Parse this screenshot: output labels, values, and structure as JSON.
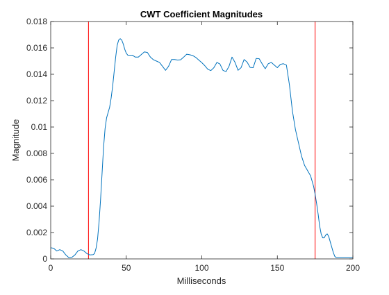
{
  "chart_data": {
    "type": "line",
    "title": "CWT Coefficient Magnitudes",
    "xlabel": "Milliseconds",
    "ylabel": "Magnitude",
    "xlim": [
      0,
      200
    ],
    "ylim": [
      0,
      0.018
    ],
    "xticks": [
      0,
      50,
      100,
      150,
      200
    ],
    "xtick_labels": [
      "0",
      "50",
      "100",
      "150",
      "200"
    ],
    "yticks": [
      0,
      0.002,
      0.004,
      0.006,
      0.008,
      0.01,
      0.012,
      0.014,
      0.016,
      0.018
    ],
    "ytick_labels": [
      "0",
      "0.002",
      "0.004",
      "0.006",
      "0.008",
      "0.01",
      "0.012",
      "0.014",
      "0.016",
      "0.018"
    ],
    "grid": false,
    "box": true,
    "series": [
      {
        "color": "#0072BD",
        "x": [
          0,
          2,
          4,
          6,
          8,
          10,
          12,
          14,
          16,
          18,
          20,
          22,
          24,
          26,
          28,
          29,
          30,
          31,
          32,
          33,
          34,
          35,
          36,
          37,
          38,
          39,
          40,
          41,
          42,
          43,
          44,
          45,
          46,
          47,
          48,
          49,
          50,
          51,
          52,
          53,
          54,
          56,
          58,
          60,
          62,
          64,
          66,
          68,
          70,
          72,
          74,
          76,
          78,
          80,
          82,
          84,
          86,
          88,
          90,
          92,
          94,
          96,
          98,
          100,
          102,
          104,
          106,
          108,
          110,
          112,
          114,
          116,
          118,
          120,
          122,
          124,
          126,
          128,
          130,
          132,
          134,
          136,
          138,
          140,
          142,
          144,
          146,
          148,
          150,
          152,
          154,
          156,
          158,
          160,
          162,
          164,
          166,
          168,
          170,
          172,
          173,
          174,
          175,
          176,
          177,
          178,
          179,
          180,
          181,
          182,
          183,
          184,
          185,
          186,
          187,
          188,
          189,
          190,
          191,
          192,
          193,
          194,
          195,
          196,
          197,
          198,
          199,
          200
        ],
        "y": [
          0.00085,
          0.0008,
          0.0006,
          0.0007,
          0.0006,
          0.0003,
          0.0001,
          0.00012,
          0.0003,
          0.0006,
          0.0007,
          0.0006,
          0.0004,
          0.0003,
          0.00032,
          0.0004,
          0.0008,
          0.0015,
          0.0028,
          0.0045,
          0.0065,
          0.0085,
          0.0099,
          0.0107,
          0.0111,
          0.0115,
          0.0122,
          0.0131,
          0.0142,
          0.0153,
          0.0162,
          0.0166,
          0.0167,
          0.0166,
          0.0163,
          0.0159,
          0.0156,
          0.01545,
          0.01545,
          0.01545,
          0.01545,
          0.0153,
          0.0153,
          0.0155,
          0.0157,
          0.01565,
          0.0153,
          0.0151,
          0.015,
          0.0149,
          0.0146,
          0.0143,
          0.0146,
          0.01512,
          0.01512,
          0.01508,
          0.0151,
          0.0153,
          0.01552,
          0.01548,
          0.01542,
          0.01528,
          0.01508,
          0.01488,
          0.01465,
          0.01438,
          0.01428,
          0.0145,
          0.0149,
          0.01478,
          0.0143,
          0.0142,
          0.0146,
          0.0153,
          0.0149,
          0.0143,
          0.0145,
          0.01512,
          0.01492,
          0.01452,
          0.0145,
          0.0152,
          0.01518,
          0.01478,
          0.01442,
          0.0148,
          0.0149,
          0.0147,
          0.0145,
          0.01475,
          0.0148,
          0.0147,
          0.0132,
          0.0112,
          0.0098,
          0.0088,
          0.0078,
          0.0071,
          0.0067,
          0.0063,
          0.0059,
          0.0055,
          0.0049,
          0.0042,
          0.0034,
          0.0025,
          0.0019,
          0.0016,
          0.0016,
          0.0018,
          0.0019,
          0.0017,
          0.0013,
          0.0009,
          0.0005,
          0.0002,
          0.0001,
          0.0001,
          0.0001,
          0.0001,
          0.0001,
          0.0001,
          0.0001,
          0.0001,
          0.0001,
          0.0001,
          0.0001,
          0.0001
        ]
      }
    ],
    "vlines": [
      {
        "x": 25,
        "color": "#FF0000"
      },
      {
        "x": 175,
        "color": "#FF0000"
      }
    ]
  }
}
